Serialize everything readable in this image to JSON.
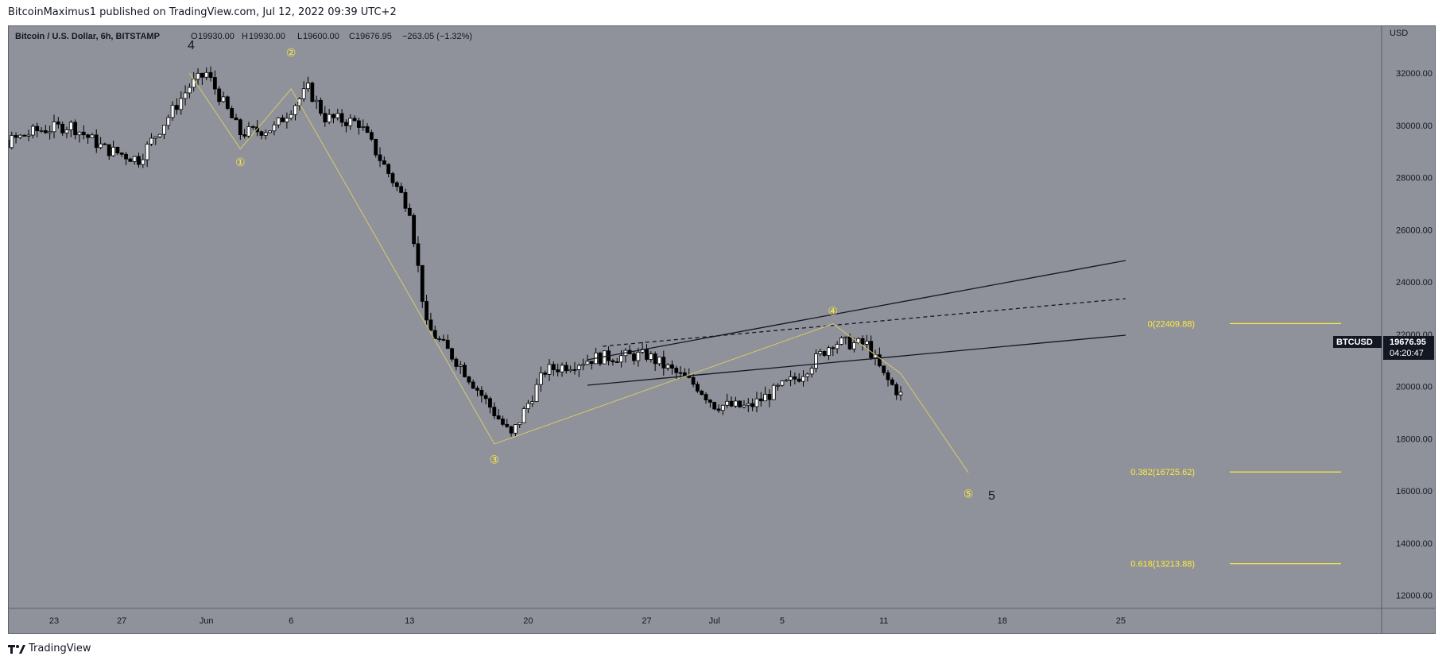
{
  "header": {
    "publisher_text": "BitcoinMaximus1 published on TradingView.com, Jul 12, 2022 09:39 UTC+2"
  },
  "legend": {
    "symbol": "Bitcoin / U.S. Dollar, 6h, BITSTAMP",
    "o_label": "O",
    "o_value": "19930.00",
    "h_label": "H",
    "h_value": "19930.00",
    "l_label": "L",
    "l_value": "19600.00",
    "c_label": "C",
    "c_value": "19676.95",
    "change": "−263.05 (−1.32%)"
  },
  "axis": {
    "currency_label": "USD",
    "price_ticks": [
      "32000.00",
      "30000.00",
      "28000.00",
      "26000.00",
      "24000.00",
      "22000.00",
      "20000.00",
      "18000.00",
      "16000.00",
      "14000.00",
      "12000.00"
    ],
    "time_ticks": [
      "23",
      "27",
      "Jun",
      "6",
      "13",
      "20",
      "27",
      "Jul",
      "5",
      "11",
      "18",
      "25"
    ]
  },
  "price_tag": {
    "symbol": "BTCUSD",
    "price": "19676.95",
    "countdown": "04:20:47"
  },
  "fib_levels": [
    {
      "label": "0(22409.88)",
      "value": 22409.88
    },
    {
      "label": "0.382(16725.62)",
      "value": 16725.62
    },
    {
      "label": "0.618(13213.88)",
      "value": 13213.88
    }
  ],
  "wave_labels": {
    "major_4": "4",
    "major_5": "5",
    "minor": [
      "①",
      "②",
      "③",
      "④",
      "⑤"
    ]
  },
  "footer": {
    "logo_text": "TradingView"
  },
  "colors": {
    "background": "#8f929b",
    "bull_candle": "#ffffff",
    "bear_candle": "#000000",
    "fib": "#ffeb3b",
    "wave_line": "#d8c96a",
    "channel": "#131722",
    "price_tag_bg": "#131722"
  },
  "chart_data": {
    "type": "candlestick",
    "title": "Bitcoin / U.S. Dollar, 6h, BITSTAMP",
    "ylabel": "USD",
    "ylim": [
      11500,
      33800
    ],
    "y_ticks": [
      12000,
      14000,
      16000,
      18000,
      20000,
      22000,
      24000,
      26000,
      28000,
      30000,
      32000
    ],
    "x_ticks": [
      "23",
      "27",
      "Jun",
      "6",
      "13",
      "20",
      "27",
      "Jul",
      "5",
      "11",
      "18",
      "25"
    ],
    "ohlc_keypoints": [
      {
        "date": "2022-05-20",
        "close": 29300
      },
      {
        "date": "2022-05-22",
        "close": 29800
      },
      {
        "date": "2022-05-24",
        "close": 30000
      },
      {
        "date": "2022-05-26",
        "close": 29100
      },
      {
        "date": "2022-05-28",
        "close": 28700
      },
      {
        "date": "2022-05-31",
        "close": 31500
      },
      {
        "date": "2022-06-01",
        "close": 32000
      },
      {
        "date": "2022-06-03",
        "close": 29700
      },
      {
        "date": "2022-06-05",
        "close": 29900
      },
      {
        "date": "2022-06-07",
        "close": 31400
      },
      {
        "date": "2022-06-08",
        "close": 30300
      },
      {
        "date": "2022-06-10",
        "close": 30100
      },
      {
        "date": "2022-06-13",
        "close": 26800
      },
      {
        "date": "2022-06-14",
        "close": 22300
      },
      {
        "date": "2022-06-16",
        "close": 20800
      },
      {
        "date": "2022-06-18",
        "close": 19000
      },
      {
        "date": "2022-06-19",
        "close": 18100
      },
      {
        "date": "2022-06-21",
        "close": 20600
      },
      {
        "date": "2022-06-24",
        "close": 21100
      },
      {
        "date": "2022-06-27",
        "close": 21200
      },
      {
        "date": "2022-06-30",
        "close": 20000
      },
      {
        "date": "2022-07-01",
        "close": 19300
      },
      {
        "date": "2022-07-03",
        "close": 19200
      },
      {
        "date": "2022-07-06",
        "close": 20400
      },
      {
        "date": "2022-07-08",
        "close": 21700
      },
      {
        "date": "2022-07-10",
        "close": 21600
      },
      {
        "date": "2022-07-11",
        "close": 20400
      },
      {
        "date": "2022-07-12",
        "close": 19676.95
      }
    ],
    "series": [
      {
        "name": "BTCUSD",
        "last": 19676.95
      }
    ]
  }
}
